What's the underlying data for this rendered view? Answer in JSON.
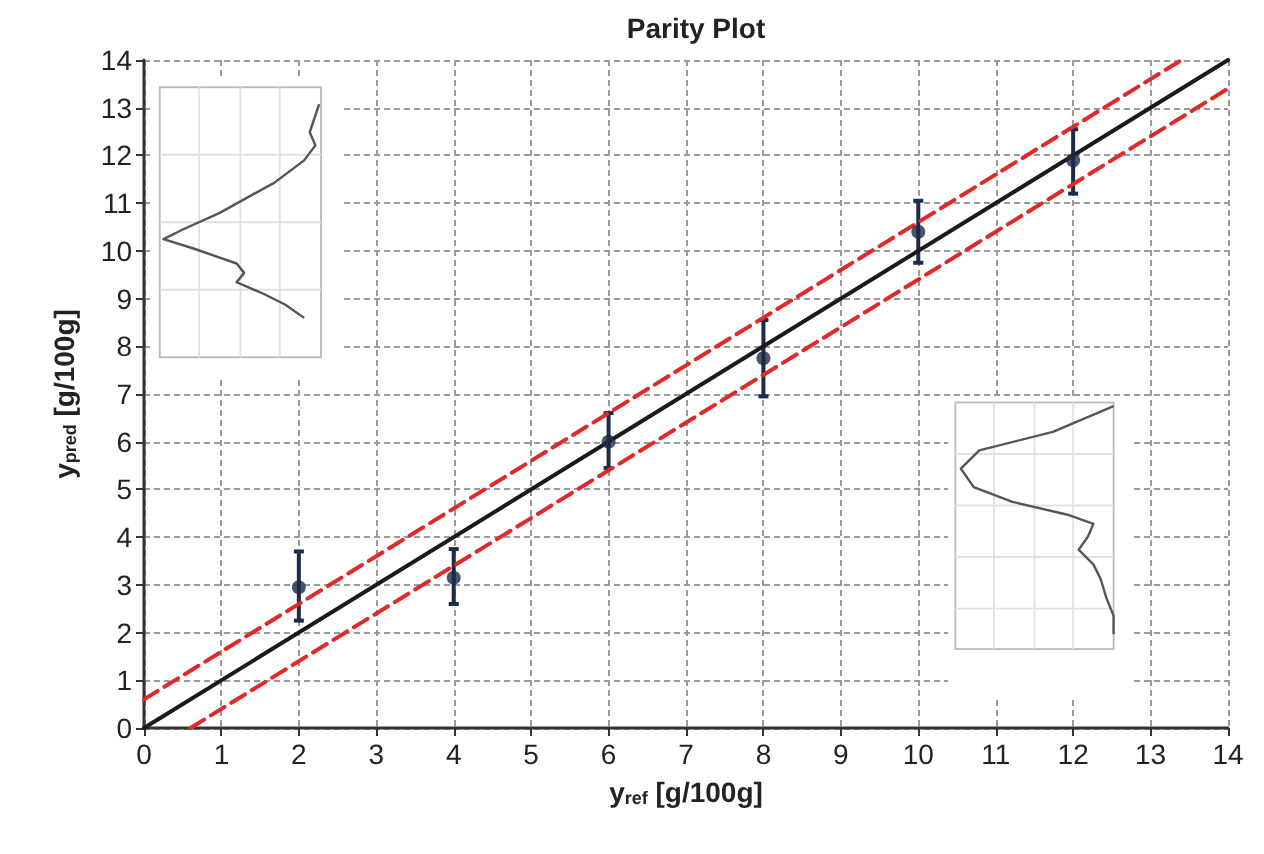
{
  "chart_data": {
    "type": "scatter",
    "title": "Parity Plot",
    "xlabel": "y$_{ref}$ [g/100g]",
    "ylabel": "y$_{pred}$ [g/100g]",
    "xlim": [
      0,
      14
    ],
    "ylim": [
      0,
      14
    ],
    "xticks": [
      0,
      1,
      2,
      3,
      4,
      5,
      6,
      7,
      8,
      9,
      10,
      11,
      12,
      13,
      14
    ],
    "yticks": [
      0,
      1,
      2,
      3,
      4,
      5,
      6,
      7,
      8,
      9,
      10,
      11,
      12,
      13,
      14
    ],
    "grid": true,
    "series": [
      {
        "type": "scatter",
        "color": "#1c2b48",
        "marker": "circle",
        "x": [
          2,
          4,
          6,
          8,
          10,
          12
        ],
        "values": [
          2.95,
          3.15,
          6.0,
          7.75,
          10.4,
          11.9
        ],
        "errors": [
          [
            2.25,
            3.7
          ],
          [
            2.6,
            3.75
          ],
          [
            5.45,
            6.6
          ],
          [
            6.95,
            8.55
          ],
          [
            9.75,
            11.05
          ],
          [
            11.2,
            12.55
          ]
        ]
      },
      {
        "type": "line",
        "color": "#1a1a1a",
        "line_style": "solid",
        "x": [
          0,
          14
        ],
        "values": [
          0,
          14
        ]
      },
      {
        "type": "line",
        "color": "#e02a2a",
        "line_style": "dashed",
        "x": [
          0,
          13.4
        ],
        "values": [
          0.6,
          14
        ]
      },
      {
        "type": "line",
        "color": "#e02a2a",
        "line_style": "dashed",
        "x": [
          0.6,
          14
        ],
        "values": [
          0,
          13.4
        ]
      }
    ]
  }
}
